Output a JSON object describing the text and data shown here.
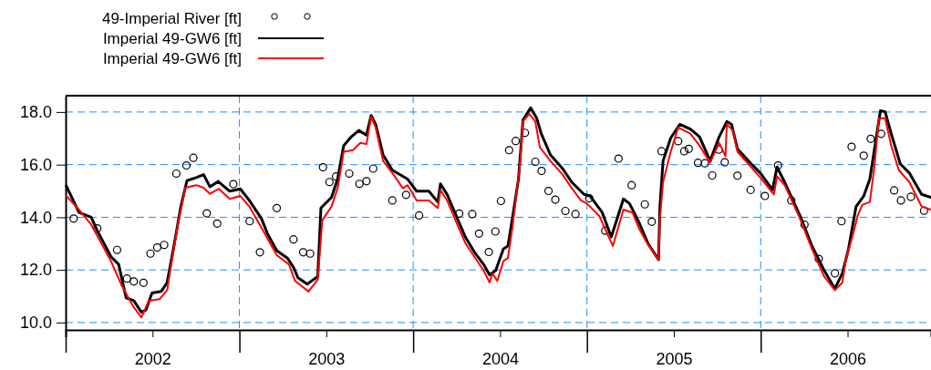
{
  "chart_data": {
    "type": "line",
    "xlim": [
      2002,
      2006.98
    ],
    "ylim": [
      9.72,
      18.62
    ],
    "xticks": [
      {
        "value": 2002,
        "label": null
      },
      {
        "value": 2002.5,
        "label": "2002"
      },
      {
        "value": 2003,
        "label": null
      },
      {
        "value": 2003.5,
        "label": "2003"
      },
      {
        "value": 2004,
        "label": null
      },
      {
        "value": 2004.5,
        "label": "2004"
      },
      {
        "value": 2005,
        "label": null
      },
      {
        "value": 2005.5,
        "label": "2005"
      },
      {
        "value": 2006,
        "label": null
      },
      {
        "value": 2006.5,
        "label": "2006"
      }
    ],
    "yticks": [
      {
        "value": 10,
        "label": "10.0"
      },
      {
        "value": 12,
        "label": "12.0"
      },
      {
        "value": 14,
        "label": "14.0"
      },
      {
        "value": 16,
        "label": "16.0"
      },
      {
        "value": 18,
        "label": "18.0"
      }
    ],
    "grid": true,
    "legend": "top left",
    "line_style": "solid",
    "series": [
      {
        "name": "49-Imperial River [ft]",
        "type": "scatter",
        "marker": "circle",
        "color": "#000000",
        "x": [
          2002.046,
          2002.182,
          2002.296,
          2002.353,
          2002.392,
          2002.448,
          2002.488,
          2002.527,
          2002.567,
          2002.637,
          2002.695,
          2002.735,
          2002.812,
          2002.872,
          2002.965,
          2003.059,
          2003.118,
          2003.215,
          2003.311,
          2003.367,
          2003.407,
          2003.481,
          2003.518,
          2003.556,
          2003.632,
          2003.691,
          2003.731,
          2003.77,
          2003.88,
          2003.959,
          2004.034,
          2004.265,
          2004.34,
          2004.379,
          2004.435,
          2004.473,
          2004.505,
          2004.552,
          2004.59,
          2004.643,
          2004.703,
          2004.739,
          2004.779,
          2004.818,
          2004.876,
          2004.934,
          2005.013,
          2005.105,
          2005.182,
          2005.257,
          2005.333,
          2005.373,
          2005.429,
          2005.525,
          2005.56,
          2005.586,
          2005.639,
          2005.679,
          2005.721,
          2005.758,
          2005.793,
          2005.866,
          2005.942,
          2006.024,
          2006.1,
          2006.176,
          2006.252,
          2006.334,
          2006.427,
          2006.465,
          2006.523,
          2006.593,
          2006.633,
          2006.693,
          2006.768,
          2006.807,
          2006.864,
          2006.94
        ],
        "values": [
          13.95,
          13.58,
          12.76,
          11.67,
          11.56,
          11.51,
          12.62,
          12.85,
          12.95,
          15.66,
          15.97,
          16.26,
          14.15,
          13.76,
          15.26,
          13.85,
          12.67,
          14.35,
          13.16,
          12.67,
          12.62,
          15.9,
          15.34,
          15.55,
          15.66,
          15.27,
          15.37,
          15.85,
          14.64,
          14.85,
          14.07,
          14.14,
          14.12,
          13.38,
          12.68,
          13.46,
          14.62,
          16.55,
          16.9,
          17.21,
          16.11,
          15.76,
          15,
          14.67,
          14.24,
          14.12,
          14.72,
          13.49,
          16.23,
          15.22,
          14.49,
          13.83,
          16.51,
          16.89,
          16.51,
          16.6,
          16.07,
          16.05,
          15.59,
          16.57,
          16.09,
          15.58,
          15.04,
          14.81,
          15.97,
          14.64,
          13.72,
          12.42,
          11.87,
          13.85,
          16.68,
          16.34,
          16.98,
          17.17,
          15.02,
          14.64,
          14.78,
          14.25
        ]
      },
      {
        "name": "Imperial 49-GW6 [ft]",
        "type": "line",
        "marker": "none",
        "color": "#000000",
        "x": [
          2002.004,
          2002.077,
          2002.147,
          2002.182,
          2002.261,
          2002.305,
          2002.348,
          2002.392,
          2002.436,
          2002.462,
          2002.497,
          2002.55,
          2002.584,
          2002.62,
          2002.663,
          2002.698,
          2002.751,
          2002.794,
          2002.83,
          2002.878,
          2002.944,
          2003.005,
          2003.057,
          2003.127,
          2003.162,
          2003.215,
          2003.276,
          2003.311,
          2003.337,
          2003.39,
          2003.451,
          2003.469,
          2003.53,
          2003.565,
          2003.6,
          2003.644,
          2003.687,
          2003.731,
          2003.758,
          2003.784,
          2003.827,
          2003.88,
          2003.968,
          2004.02,
          2004.09,
          2004.142,
          2004.157,
          2004.195,
          2004.247,
          2004.3,
          2004.352,
          2004.405,
          2004.44,
          2004.475,
          2004.519,
          2004.545,
          2004.571,
          2004.606,
          2004.632,
          2004.676,
          2004.711,
          2004.737,
          2004.79,
          2004.86,
          2004.913,
          2004.983,
          2005.018,
          2005.088,
          2005.14,
          2005.21,
          2005.245,
          2005.298,
          2005.35,
          2005.412,
          2005.42,
          2005.438,
          2005.482,
          2005.534,
          2005.595,
          2005.648,
          2005.709,
          2005.761,
          2005.805,
          2005.832,
          2005.866,
          2005.945,
          2005.998,
          2006.068,
          2006.094,
          2006.138,
          2006.226,
          2006.295,
          2006.365,
          2006.427,
          2006.47,
          2006.505,
          2006.549,
          2006.593,
          2006.628,
          2006.663,
          2006.689,
          2006.716,
          2006.751,
          2006.803,
          2006.856,
          2006.926,
          2006.978
        ],
        "values": [
          15.19,
          14.18,
          14,
          13.49,
          12.5,
          12.21,
          10.94,
          10.83,
          10.39,
          10.48,
          11.12,
          11.18,
          11.52,
          12.79,
          14.41,
          15.39,
          15.51,
          15.62,
          15.16,
          15.36,
          14.99,
          15.08,
          14.64,
          13.95,
          13.37,
          12.73,
          12.45,
          12.1,
          11.7,
          11.46,
          11.75,
          14.35,
          14.76,
          15.45,
          16.72,
          17.06,
          17.3,
          17.12,
          17.87,
          17.53,
          16.37,
          15.79,
          15.45,
          14.99,
          14.99,
          14.58,
          15.27,
          14.87,
          14.06,
          13.25,
          12.68,
          12.21,
          11.81,
          11.98,
          12.79,
          12.91,
          13.95,
          15.45,
          17.7,
          18.16,
          17.76,
          17.18,
          16.37,
          15.85,
          15.33,
          14.87,
          14.81,
          14.18,
          13.25,
          14.7,
          14.52,
          13.83,
          13.02,
          12.39,
          14.41,
          16.14,
          17.01,
          17.53,
          17.35,
          17.06,
          16.14,
          17.06,
          17.64,
          17.53,
          16.6,
          16.03,
          15.68,
          15.04,
          15.91,
          15.33,
          14.06,
          12.91,
          11.98,
          11.29,
          11.87,
          12.79,
          14.41,
          14.81,
          15.45,
          16.95,
          18.05,
          18.01,
          17.18,
          16.03,
          15.68,
          14.87,
          14.76
        ]
      },
      {
        "name": "Imperial 49-GW6 [ft]",
        "type": "line",
        "marker": "none",
        "color": "#ff0000",
        "x": [
          2002.004,
          2002.077,
          2002.147,
          2002.261,
          2002.322,
          2002.392,
          2002.436,
          2002.479,
          2002.541,
          2002.584,
          2002.602,
          2002.646,
          2002.689,
          2002.751,
          2002.794,
          2002.83,
          2002.882,
          2002.944,
          2003.005,
          2003.057,
          2003.127,
          2003.215,
          2003.285,
          2003.32,
          2003.398,
          2003.451,
          2003.477,
          2003.53,
          2003.565,
          2003.6,
          2003.653,
          2003.696,
          2003.731,
          2003.758,
          2003.784,
          2003.827,
          2003.88,
          2003.941,
          2003.968,
          2004.02,
          2004.09,
          2004.142,
          2004.157,
          2004.195,
          2004.247,
          2004.3,
          2004.352,
          2004.405,
          2004.44,
          2004.457,
          2004.484,
          2004.519,
          2004.545,
          2004.571,
          2004.615,
          2004.632,
          2004.668,
          2004.703,
          2004.729,
          2004.79,
          2004.86,
          2004.913,
          2004.965,
          2005,
          2005.07,
          2005.149,
          2005.21,
          2005.262,
          2005.298,
          2005.35,
          2005.412,
          2005.42,
          2005.438,
          2005.482,
          2005.525,
          2005.595,
          2005.648,
          2005.709,
          2005.761,
          2005.797,
          2005.805,
          2005.84,
          2005.866,
          2005.945,
          2005.998,
          2006.076,
          2006.094,
          2006.138,
          2006.226,
          2006.295,
          2006.365,
          2006.427,
          2006.47,
          2006.488,
          2006.532,
          2006.558,
          2006.584,
          2006.628,
          2006.654,
          2006.68,
          2006.716,
          2006.751,
          2006.795,
          2006.856,
          2006.926,
          2006.978
        ],
        "values": [
          14.81,
          14.29,
          13.72,
          12.33,
          11.41,
          10.58,
          10.19,
          10.83,
          10.89,
          11.23,
          11.98,
          13.72,
          15.12,
          15.22,
          15.12,
          14.89,
          15.08,
          14.7,
          14.81,
          14.41,
          13.6,
          12.56,
          12.21,
          11.58,
          11.18,
          11.64,
          13.89,
          14.41,
          15.1,
          16.49,
          16.55,
          16.83,
          16.78,
          17.82,
          17.41,
          16.14,
          15.68,
          15.1,
          15.22,
          14.64,
          14.64,
          14.35,
          15.04,
          14.64,
          13.83,
          13.02,
          12.5,
          11.98,
          11.52,
          11.87,
          11.58,
          12.33,
          12.45,
          13.6,
          16.02,
          17.64,
          17.93,
          17.64,
          16.66,
          16.14,
          15.62,
          15.1,
          14.64,
          14.52,
          14.06,
          12.91,
          14.29,
          14.18,
          13.6,
          12.97,
          12.39,
          13.95,
          15.33,
          16.49,
          17.41,
          17.18,
          16.72,
          16.08,
          16.83,
          16.31,
          17.53,
          17.3,
          16.49,
          15.91,
          15.51,
          14.87,
          15.56,
          15.22,
          13.95,
          12.79,
          11.75,
          11.23,
          11.52,
          12.33,
          13.37,
          14.06,
          14.47,
          14.58,
          15.91,
          17.76,
          17.76,
          16.72,
          15.79,
          15.33,
          14.41,
          14.29
        ]
      }
    ]
  }
}
